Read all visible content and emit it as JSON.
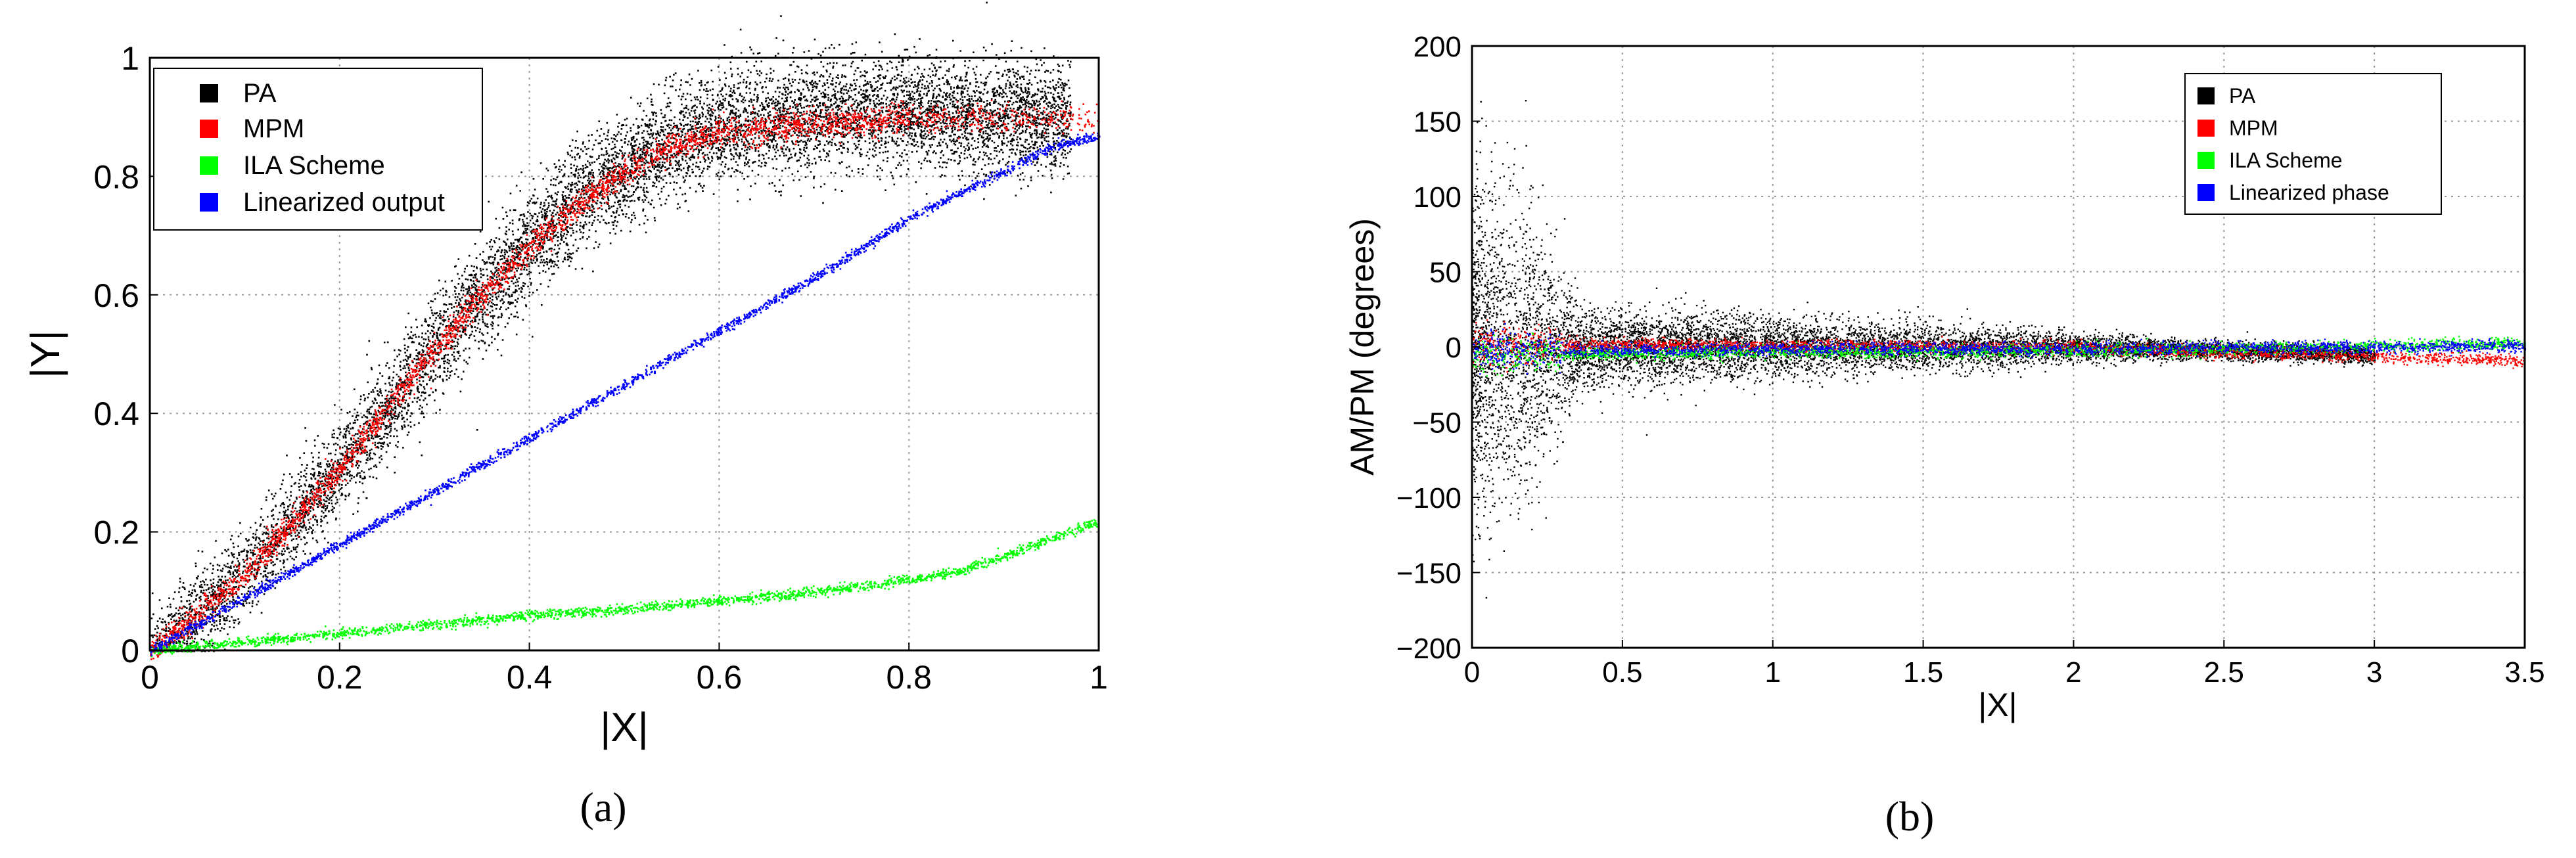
{
  "chart_data": [
    {
      "type": "scatter",
      "panel_label": "(a)",
      "xlabel": "|X|",
      "ylabel": "|Y|",
      "xlim": [
        0,
        1
      ],
      "ylim": [
        0,
        1
      ],
      "xticks": [
        0,
        0.2,
        0.4,
        0.6,
        0.8,
        1
      ],
      "xtick_labels": [
        "0",
        "0.2",
        "0.4",
        "0.6",
        "0.8",
        "1"
      ],
      "yticks": [
        0,
        0.2,
        0.4,
        0.6,
        0.8,
        1
      ],
      "ytick_labels": [
        "0",
        "0.2",
        "0.4",
        "0.6",
        "0.8",
        "1"
      ],
      "grid": true,
      "legend_position": "top-left",
      "series": [
        {
          "name": "PA",
          "color": "#000000",
          "x": [
            0.0,
            0.05,
            0.1,
            0.15,
            0.2,
            0.25,
            0.3,
            0.35,
            0.4,
            0.45,
            0.5,
            0.55,
            0.6,
            0.65,
            0.7,
            0.75,
            0.8,
            0.85,
            0.9,
            0.95
          ],
          "y": [
            0.0,
            0.06,
            0.13,
            0.22,
            0.31,
            0.41,
            0.51,
            0.6,
            0.68,
            0.76,
            0.81,
            0.86,
            0.88,
            0.9,
            0.905,
            0.91,
            0.91,
            0.905,
            0.9,
            0.9
          ]
        },
        {
          "name": "MPM",
          "color": "#ff0000",
          "x": [
            0.0,
            0.05,
            0.1,
            0.15,
            0.2,
            0.25,
            0.3,
            0.35,
            0.4,
            0.45,
            0.5,
            0.55,
            0.6,
            0.65,
            0.7,
            0.75,
            0.8,
            0.85,
            0.9,
            0.95,
            1.0
          ],
          "y": [
            0.0,
            0.06,
            0.13,
            0.22,
            0.31,
            0.41,
            0.51,
            0.6,
            0.68,
            0.75,
            0.81,
            0.85,
            0.875,
            0.885,
            0.89,
            0.895,
            0.9,
            0.9,
            0.9,
            0.9,
            0.9
          ]
        },
        {
          "name": "ILA Scheme",
          "color": "#00ff00",
          "x": [
            0.0,
            0.1,
            0.2,
            0.3,
            0.4,
            0.5,
            0.6,
            0.7,
            0.75,
            0.8,
            0.85,
            0.9,
            0.95,
            1.0
          ],
          "y": [
            0.0,
            0.015,
            0.03,
            0.045,
            0.06,
            0.07,
            0.085,
            0.1,
            0.11,
            0.12,
            0.135,
            0.16,
            0.19,
            0.22
          ]
        },
        {
          "name": "Linearized output",
          "color": "#0000ff",
          "x": [
            0.0,
            0.1,
            0.2,
            0.3,
            0.4,
            0.5,
            0.6,
            0.7,
            0.75,
            0.8,
            0.85,
            0.9,
            0.95,
            1.0
          ],
          "y": [
            0.0,
            0.09,
            0.18,
            0.27,
            0.36,
            0.45,
            0.54,
            0.63,
            0.68,
            0.73,
            0.77,
            0.81,
            0.85,
            0.87
          ]
        }
      ]
    },
    {
      "type": "scatter",
      "panel_label": "(b)",
      "xlabel": "|X|",
      "ylabel": "AM/PM (degrees)",
      "xlim": [
        0,
        3.5
      ],
      "ylim": [
        -200,
        200
      ],
      "xticks": [
        0,
        0.5,
        1,
        1.5,
        2,
        2.5,
        3,
        3.5
      ],
      "xtick_labels": [
        "0",
        "0.5",
        "1",
        "1.5",
        "2",
        "2.5",
        "3",
        "3.5"
      ],
      "yticks": [
        -200,
        -150,
        -100,
        -50,
        0,
        50,
        100,
        150,
        200
      ],
      "ytick_labels": [
        "−200",
        "−150",
        "−100",
        "−50",
        "0",
        "50",
        "100",
        "150",
        "200"
      ],
      "grid": true,
      "legend_position": "top-right",
      "series": [
        {
          "name": "PA",
          "color": "#000000",
          "x": [
            0.0,
            0.1,
            0.2,
            0.3,
            0.5,
            1.0,
            1.5,
            2.0,
            2.5,
            3.0
          ],
          "y": [
            0,
            0,
            0,
            0,
            0,
            0,
            0,
            0,
            -2,
            -5
          ]
        },
        {
          "name": "MPM",
          "color": "#ff0000",
          "x": [
            0.0,
            0.5,
            1.0,
            1.5,
            2.0,
            2.5,
            3.0,
            3.5
          ],
          "y": [
            2,
            2,
            1,
            1,
            0,
            -3,
            -6,
            -9
          ]
        },
        {
          "name": "ILA Scheme",
          "color": "#00ff00",
          "x": [
            0.0,
            0.5,
            1.0,
            1.5,
            2.0,
            2.5,
            3.0,
            3.5
          ],
          "y": [
            -5,
            -4,
            -3,
            -3,
            -2,
            -1,
            1,
            3
          ]
        },
        {
          "name": "Linearized phase",
          "color": "#0000ff",
          "x": [
            0.0,
            0.5,
            1.0,
            1.5,
            2.0,
            2.5,
            3.0,
            3.5
          ],
          "y": [
            -2,
            -2,
            -1,
            -1,
            -1,
            0,
            0,
            1
          ]
        }
      ]
    }
  ]
}
